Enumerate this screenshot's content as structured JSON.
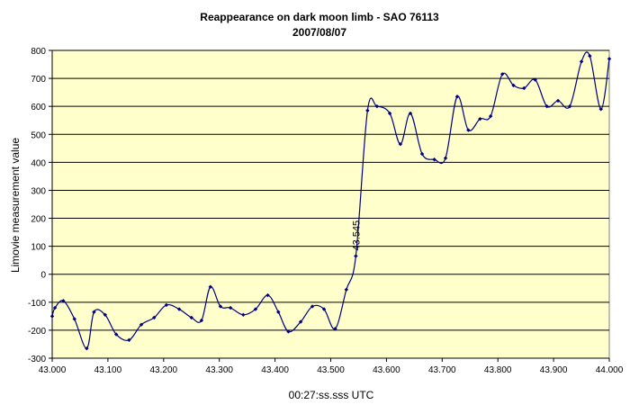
{
  "chart_data": {
    "type": "line",
    "title": "Reappearance on dark moon limb - SAO 76113",
    "subtitle": "2007/08/07",
    "xlabel": "00:27:ss.sss UTC",
    "ylabel": "Limovie measurement value",
    "xlim": [
      43.0,
      44.0
    ],
    "ylim": [
      -300,
      800
    ],
    "x_ticks": [
      "43.000",
      "43.100",
      "43.200",
      "43.300",
      "43.400",
      "43.500",
      "43.600",
      "43.700",
      "43.800",
      "43.900",
      "44.000"
    ],
    "y_ticks": [
      "-300",
      "-200",
      "-100",
      "0",
      "100",
      "200",
      "300",
      "400",
      "500",
      "600",
      "700",
      "800"
    ],
    "grid": true,
    "plot_background": "#ffffcc",
    "line_color": "#000080",
    "annotation": {
      "text": "43.545",
      "x": 43.545,
      "y": 100
    },
    "series": [
      {
        "x": [
          43.0,
          43.005,
          43.02,
          43.04,
          43.062,
          43.075,
          43.095,
          43.115,
          43.138,
          43.16,
          43.183,
          43.205,
          43.228,
          43.25,
          43.268,
          43.284,
          43.302,
          43.32,
          43.343,
          43.365,
          43.387,
          43.406,
          43.424,
          43.446,
          43.467,
          43.488,
          43.508,
          43.528,
          43.545,
          43.566,
          43.583,
          43.606,
          43.625,
          43.643,
          43.664,
          43.686,
          43.706,
          43.727,
          43.747,
          43.768,
          43.787,
          43.808,
          43.828,
          43.847,
          43.867,
          43.888,
          43.908,
          43.929,
          43.95,
          43.965,
          43.985,
          44.0
        ],
        "y": [
          -150,
          -120,
          -95,
          -160,
          -265,
          -135,
          -145,
          -215,
          -235,
          -180,
          -155,
          -110,
          -125,
          -155,
          -165,
          -45,
          -115,
          -120,
          -145,
          -125,
          -75,
          -135,
          -205,
          -170,
          -115,
          -125,
          -195,
          -55,
          65,
          585,
          600,
          575,
          465,
          575,
          430,
          410,
          415,
          635,
          515,
          555,
          565,
          715,
          675,
          665,
          695,
          600,
          620,
          600,
          760,
          780,
          590,
          770
        ]
      }
    ]
  }
}
